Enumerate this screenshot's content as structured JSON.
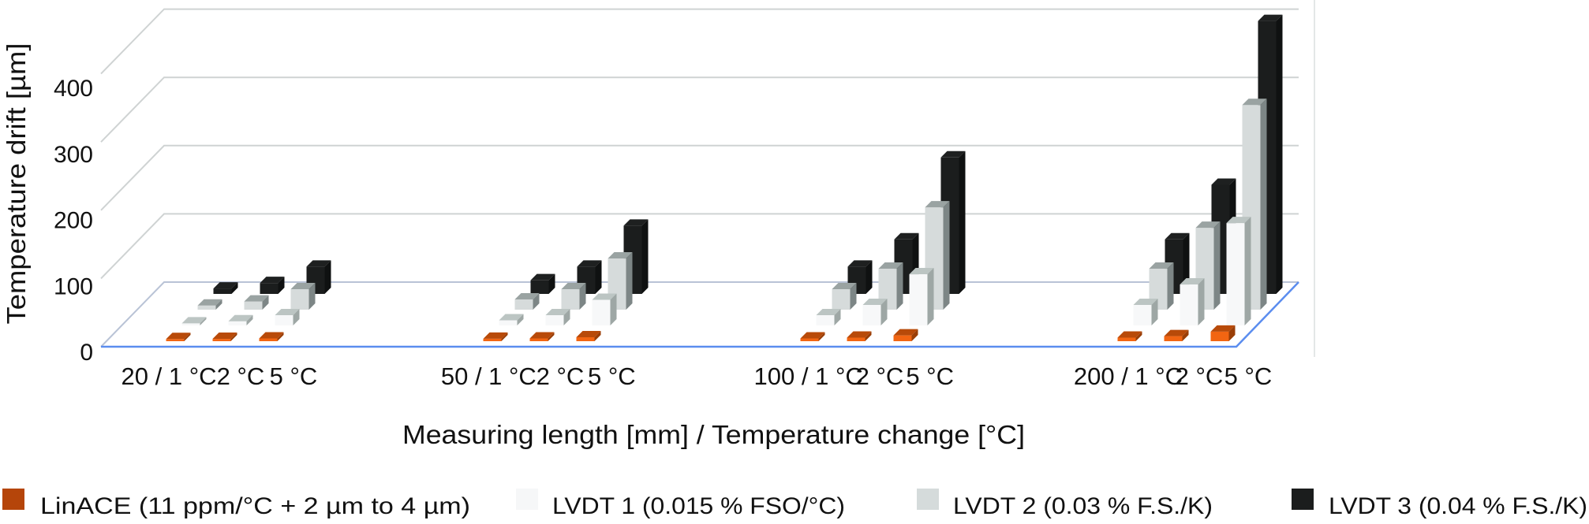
{
  "chart_data": {
    "type": "bar",
    "style": "3d-clustered-columns",
    "xlabel": "Measuring length [mm] / Temperature change [°C]",
    "ylabel": "Temperature drift [µm]",
    "ylim": [
      0,
      400
    ],
    "yticks": [
      "0",
      "100",
      "200",
      "300",
      "400"
    ],
    "grid": true,
    "legend_position": "bottom",
    "groups": [
      "20",
      "50",
      "100",
      "200"
    ],
    "category_labels": [
      [
        "20 / 1 °C",
        "2 °C",
        "5 °C"
      ],
      [
        "50 / 1 °C",
        "2 °C",
        "5 °C"
      ],
      [
        "100 / 1 °C",
        "2 °C",
        "5 °C"
      ],
      [
        "200 / 1 °C",
        "2 °C",
        "5 °C"
      ]
    ],
    "series": [
      {
        "name": "LinACE (11 ppm/°C + 2 µm to 4 µm)",
        "color": "#f26512",
        "values": [
          [
            3.2,
            3.4,
            4.1
          ],
          [
            3.6,
            4.1,
            5.8
          ],
          [
            4.1,
            5.2,
            8.5
          ],
          [
            5.2,
            7.4,
            14
          ]
        ]
      },
      {
        "name": "LVDT 1 (0.015 % FSO/°C)",
        "color": "#f6f7f8",
        "values": [
          [
            3,
            6,
            15
          ],
          [
            7.5,
            15,
            37.5
          ],
          [
            15,
            30,
            75
          ],
          [
            30,
            60,
            150
          ]
        ]
      },
      {
        "name": "LVDT 2 (0.03 % F.S./K)",
        "color": "#d5dbdb",
        "values": [
          [
            6,
            12,
            30
          ],
          [
            15,
            30,
            75
          ],
          [
            30,
            60,
            150
          ],
          [
            60,
            120,
            300
          ]
        ]
      },
      {
        "name": "LVDT 3 (0.04 % F.S./K)",
        "color": "#1b1d1d",
        "values": [
          [
            8,
            16,
            40
          ],
          [
            20,
            40,
            100
          ],
          [
            40,
            80,
            200
          ],
          [
            80,
            160,
            400
          ]
        ]
      }
    ]
  }
}
